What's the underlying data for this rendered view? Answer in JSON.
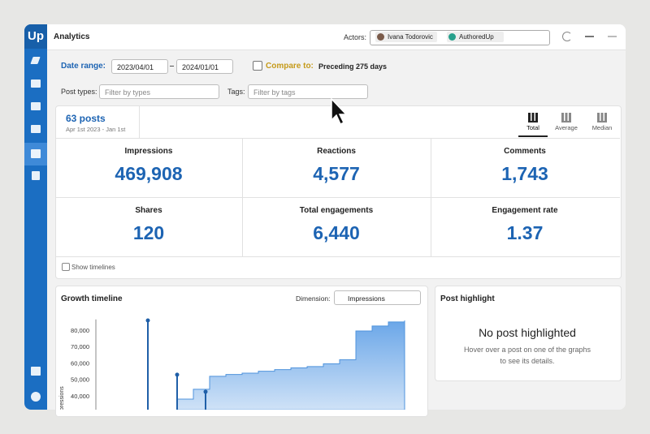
{
  "app": {
    "logo": "Up",
    "title": "Analytics",
    "actors_label": "Actors:",
    "actors": [
      "Ivana Todorovic",
      "AuthoredUp"
    ]
  },
  "filters": {
    "date_range_label": "Date range:",
    "start": "2023/04/01",
    "end": "2024/01/01",
    "compare_label": "Compare to:",
    "compare_value": "Preceding 275 days",
    "post_types_label": "Post types:",
    "post_types_placeholder": "Filter by types",
    "tags_label": "Tags:",
    "tags_placeholder": "Filter by tags"
  },
  "summary": {
    "posts": "63 posts",
    "period": "Apr 1st 2023 - Jan 1st",
    "views": [
      "Total",
      "Average",
      "Median"
    ],
    "metrics": [
      {
        "label": "Impressions",
        "value": "469,908"
      },
      {
        "label": "Reactions",
        "value": "4,577"
      },
      {
        "label": "Comments",
        "value": "1,743"
      },
      {
        "label": "Shares",
        "value": "120"
      },
      {
        "label": "Total engagements",
        "value": "6,440"
      },
      {
        "label": "Engagement rate",
        "value": "1.37"
      }
    ],
    "show_timelines": "Show timelines"
  },
  "growth_timeline": {
    "title": "Growth timeline",
    "dimension_label": "Dimension:",
    "dimension": "Impressions",
    "chart": {
      "type": "area",
      "y_label": "Impressions",
      "xlim": [
        0,
        19
      ],
      "ylim": [
        32000,
        87000
      ],
      "yticks": [
        {
          "value": 40000,
          "label": "40,000"
        },
        {
          "value": 50000,
          "label": "50,000"
        },
        {
          "value": 60000,
          "label": "60,000"
        },
        {
          "value": 70000,
          "label": "70,000"
        },
        {
          "value": 80000,
          "label": "80,000"
        }
      ],
      "x": [
        0,
        1,
        2,
        3,
        4,
        5,
        6,
        7,
        8,
        9,
        10,
        11,
        12,
        13,
        14,
        15,
        16,
        17,
        18,
        19
      ],
      "values": [
        null,
        null,
        null,
        null,
        null,
        38500,
        44500,
        52400,
        53500,
        54300,
        55500,
        56500,
        57500,
        58300,
        60000,
        62500,
        80000,
        83000,
        85500,
        86400
      ],
      "color": "#8ab9ee",
      "stems": {
        "x": [
          3.2,
          5,
          6.75
        ],
        "values": [
          86400,
          53400,
          43000
        ],
        "color": "#1f5fa8"
      }
    }
  },
  "post_highlight": {
    "title": "Post highlight",
    "empty_title": "No post highlighted",
    "empty_lines": [
      "Hover over a post on one of the graphs",
      "to see its details."
    ]
  }
}
